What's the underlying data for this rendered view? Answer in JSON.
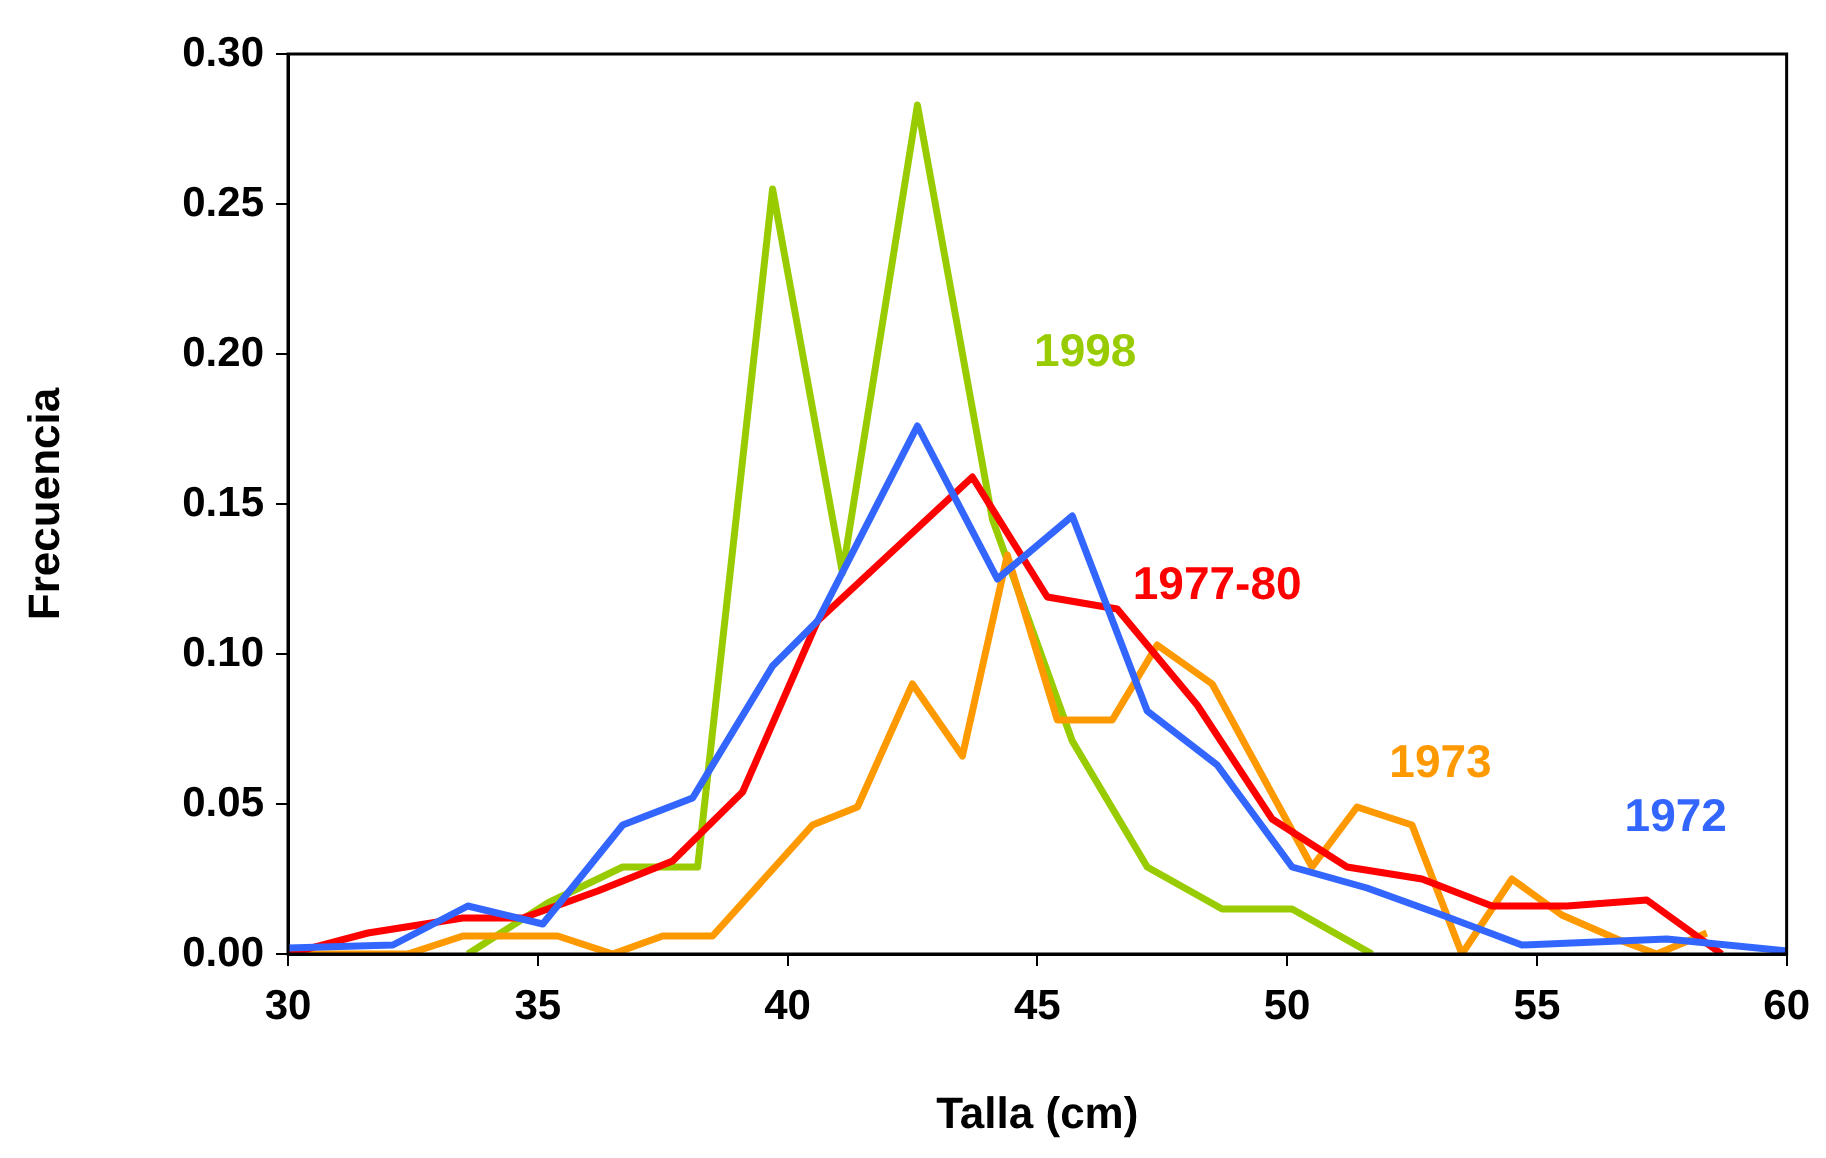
{
  "chart_data": {
    "type": "line",
    "xlabel": "Talla (cm)",
    "ylabel": "Frecuencia",
    "xlim": [
      30,
      60
    ],
    "xticks": [
      30,
      35,
      40,
      45,
      50,
      55,
      60
    ],
    "ylim": [
      0,
      0.3
    ],
    "yticks": [
      {
        "value": 0,
        "label": "0.00"
      },
      0.05,
      {
        "value": 0.1,
        "label": "0.10"
      },
      0.15,
      {
        "value": 0.2,
        "label": "0.20"
      },
      0.25,
      {
        "value": 0.3,
        "label": "0.30"
      }
    ],
    "grid": false,
    "legend": false,
    "marker": "none",
    "line_style": "solid",
    "series": [
      {
        "name": "1972",
        "color": "#3366ff",
        "x": [
          30,
          32.1,
          33.6,
          35.1,
          36.7,
          38.1,
          39.7,
          40.6,
          42.6,
          44.2,
          45.7,
          47.2,
          48.6,
          50.1,
          51.6,
          53.1,
          54.7,
          57.6,
          60
        ],
        "values": [
          0.002,
          0.003,
          0.016,
          0.01,
          0.043,
          0.052,
          0.096,
          0.111,
          0.176,
          0.125,
          0.146,
          0.081,
          0.063,
          0.029,
          0.022,
          0.013,
          0.003,
          0.005,
          0.001
        ]
      },
      {
        "name": "1977-80",
        "color": "#ff0000",
        "x": [
          30,
          31.6,
          33.5,
          34.7,
          36.2,
          37.7,
          39.1,
          40.6,
          43.7,
          45.2,
          46.6,
          48.2,
          49.7,
          51.2,
          52.7,
          54.1,
          55.6,
          57.2,
          58.7
        ],
        "values": [
          0,
          0.007,
          0.012,
          0.012,
          0.021,
          0.031,
          0.054,
          0.111,
          0.159,
          0.119,
          0.115,
          0.083,
          0.045,
          0.029,
          0.025,
          0.016,
          0.016,
          0.018,
          0
        ]
      },
      {
        "name": "1973",
        "color": "#ff9900",
        "x": [
          30,
          32.4,
          33.5,
          35.4,
          36.5,
          37.5,
          38.5,
          40.5,
          41.4,
          42.5,
          43.5,
          44.4,
          45.4,
          46.5,
          47.4,
          48.5,
          50.5,
          51.4,
          52.5,
          53.5,
          54.5,
          55.5,
          56.6,
          57.4,
          58.4
        ],
        "values": [
          0,
          0,
          0.006,
          0.006,
          0,
          0.006,
          0.006,
          0.043,
          0.049,
          0.09,
          0.066,
          0.133,
          0.078,
          0.078,
          0.103,
          0.09,
          0.029,
          0.049,
          0.043,
          0,
          0.025,
          0.013,
          0.005,
          0,
          0.007
        ]
      },
      {
        "name": "1998",
        "color": "#99cc00",
        "x": [
          33.6,
          35.2,
          36.7,
          38.2,
          39.7,
          41.1,
          42.6,
          44.1,
          45.7,
          47.2,
          48.7,
          50.1,
          51.7
        ],
        "values": [
          0,
          0.017,
          0.029,
          0.029,
          0.255,
          0.127,
          0.283,
          0.145,
          0.071,
          0.029,
          0.015,
          0.015,
          0
        ]
      }
    ]
  }
}
